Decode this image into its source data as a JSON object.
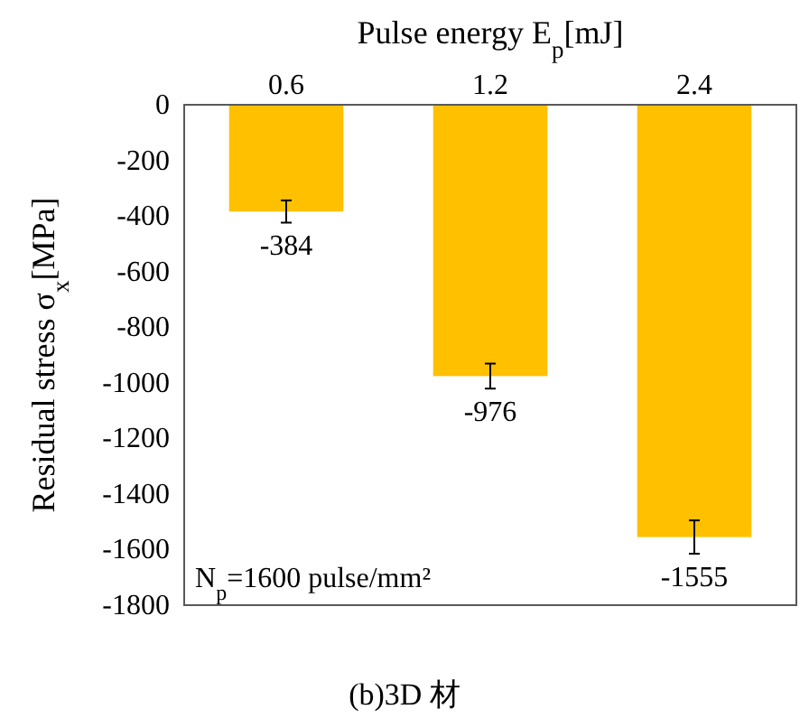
{
  "chart_data": {
    "type": "bar",
    "xlabel": "Pulse energy E$_{p}$[mJ]",
    "ylabel": "Residual stress σ$_{x}$[MPa]",
    "categories": [
      "0.6",
      "1.2",
      "2.4"
    ],
    "values": [
      -384,
      -976,
      -1555
    ],
    "errors": [
      40,
      45,
      60
    ],
    "color": "#ffc000",
    "data_labels": true,
    "ylim": [
      -1800,
      0
    ],
    "yticks": [
      -1800,
      -1600,
      -1400,
      -1200,
      -1000,
      -800,
      -600,
      -400,
      -200,
      0
    ],
    "grid": false,
    "annotations": [
      {
        "text": "N$_{p}$=1600 pulse/mm²"
      },
      {
        "text": "(b)3D 材"
      }
    ]
  }
}
